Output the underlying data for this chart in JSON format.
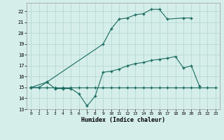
{
  "xlabel": "Humidex (Indice chaleur)",
  "xlim": [
    -0.5,
    23.5
  ],
  "ylim": [
    13,
    22.8
  ],
  "yticks": [
    13,
    14,
    15,
    16,
    17,
    18,
    19,
    20,
    21,
    22
  ],
  "xticks": [
    0,
    1,
    2,
    3,
    4,
    5,
    6,
    7,
    8,
    9,
    10,
    11,
    12,
    13,
    14,
    15,
    16,
    17,
    18,
    19,
    20,
    21,
    22,
    23
  ],
  "bg_color": "#d5eeea",
  "grid_color": "#b8d8d4",
  "line_color": "#1a6b60",
  "line1_x": [
    0,
    1,
    2,
    3,
    4,
    5,
    6,
    7,
    8,
    9,
    10,
    11,
    12,
    13,
    14,
    15,
    16,
    17,
    18,
    19,
    20,
    21,
    22,
    23
  ],
  "line1_y": [
    15,
    15,
    15,
    15,
    15,
    15,
    15,
    15,
    15,
    15,
    15,
    15,
    15,
    15,
    15,
    15,
    15,
    15,
    15,
    15,
    15,
    15,
    15,
    15
  ],
  "line2_x": [
    0,
    1,
    2,
    3,
    4,
    5,
    6,
    7,
    8,
    9,
    10,
    11,
    12,
    13,
    14,
    15,
    16,
    17,
    18,
    19,
    20,
    21
  ],
  "line2_y": [
    15,
    15,
    15.5,
    14.9,
    14.9,
    14.9,
    14.4,
    13.3,
    14.2,
    16.4,
    16.5,
    16.7,
    17.0,
    17.2,
    17.3,
    17.5,
    17.6,
    17.7,
    17.85,
    16.8,
    17.0,
    15.1
  ],
  "line3_x": [
    0,
    2,
    9,
    10,
    11,
    12,
    13,
    14,
    15,
    16,
    17,
    19,
    20
  ],
  "line3_y": [
    15,
    15.5,
    19.0,
    20.4,
    21.3,
    21.4,
    21.7,
    21.8,
    22.2,
    22.2,
    21.3,
    21.4,
    21.4
  ]
}
